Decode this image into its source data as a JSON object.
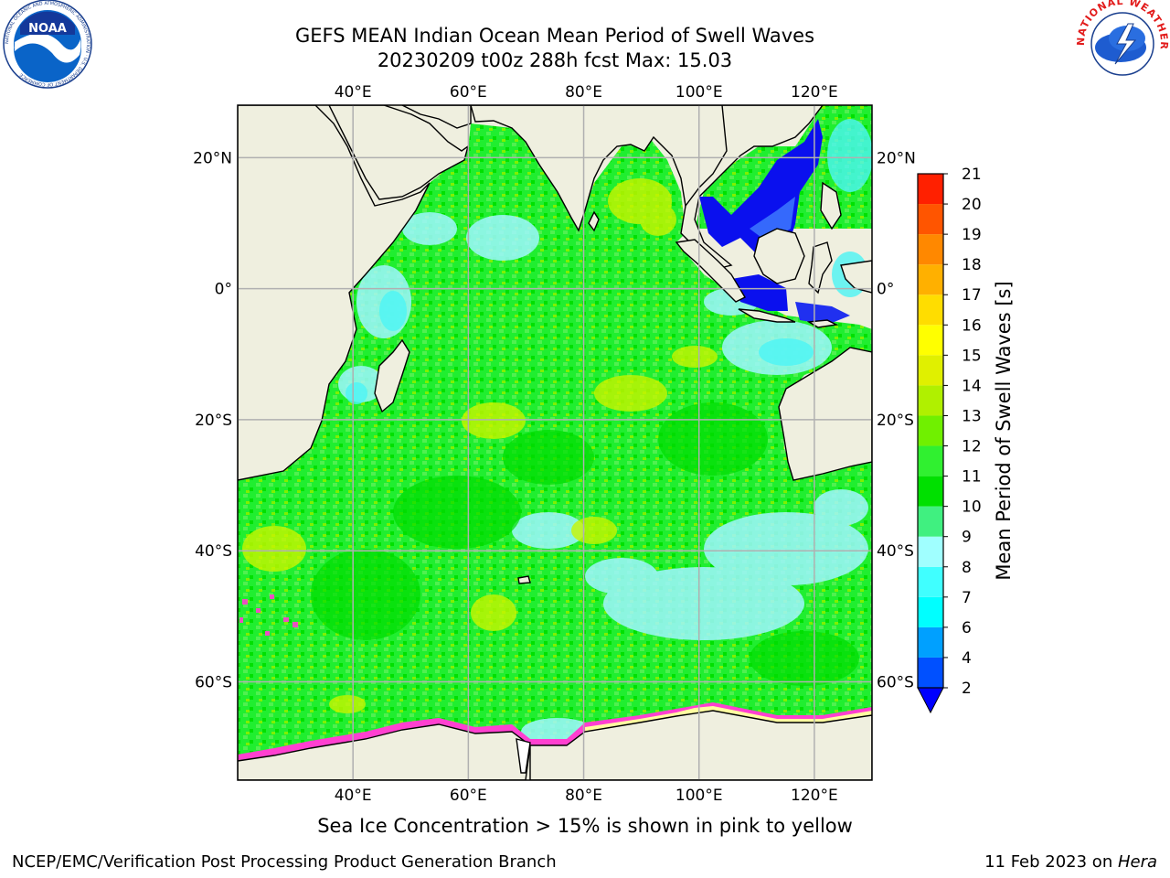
{
  "title_line1": "GEFS MEAN Indian Ocean Mean Period of Swell Waves",
  "title_line2": "20230209 t00z 288h fcst   Max: 15.03",
  "caption": "Sea Ice Concentration > 15% is shown in pink to yellow",
  "footer_left": "NCEP/EMC/Verification Post Processing Product Generation Branch",
  "footer_right_date": "11 Feb 2023 on ",
  "footer_right_host": "Hera",
  "logos": {
    "noaa": {
      "text": "NOAA",
      "ring_text": "NATIONAL OCEANIC AND ATMOSPHERIC ADMINISTRATION · U.S. DEPARTMENT OF COMMERCE"
    },
    "nws": {
      "ring_text": "NATIONAL WEATHER SERVICE"
    }
  },
  "map": {
    "lon_range": [
      20,
      130
    ],
    "lat_range": [
      -75,
      28
    ],
    "lon_ticks": [
      {
        "v": 40,
        "label": "40°E"
      },
      {
        "v": 60,
        "label": "60°E"
      },
      {
        "v": 80,
        "label": "80°E"
      },
      {
        "v": 100,
        "label": "100°E"
      },
      {
        "v": 120,
        "label": "120°E"
      }
    ],
    "lat_ticks": [
      {
        "v": 20,
        "label": "20°N"
      },
      {
        "v": 0,
        "label": "0°"
      },
      {
        "v": -20,
        "label": "20°S"
      },
      {
        "v": -40,
        "label": "40°S"
      },
      {
        "v": -60,
        "label": "60°S"
      }
    ],
    "land_color": "#efefdf",
    "grid_color": "#b0b0b0",
    "ocean_base_color": "#19f019"
  },
  "colorbar": {
    "label": "Mean Period of Swell Waves [s]",
    "ticks": [
      2,
      4,
      6,
      7,
      8,
      9,
      10,
      11,
      12,
      13,
      14,
      15,
      16,
      17,
      18,
      19,
      20,
      21
    ],
    "tick_labels": [
      "2",
      "4",
      "6",
      "7",
      "8",
      "9",
      "10",
      "11",
      "12",
      "13",
      "14",
      "15",
      "16",
      "17",
      "18",
      "19",
      "20",
      "21"
    ],
    "colors": [
      "#0050ff",
      "#00a0ff",
      "#00ffff",
      "#40ffff",
      "#a0ffff",
      "#40f080",
      "#00e000",
      "#30f030",
      "#70f000",
      "#b0f000",
      "#e0f000",
      "#ffff00",
      "#ffdd00",
      "#ffb000",
      "#ff8800",
      "#ff5500",
      "#ff2000",
      "#ff0000"
    ],
    "under_color": "#0000ff"
  }
}
